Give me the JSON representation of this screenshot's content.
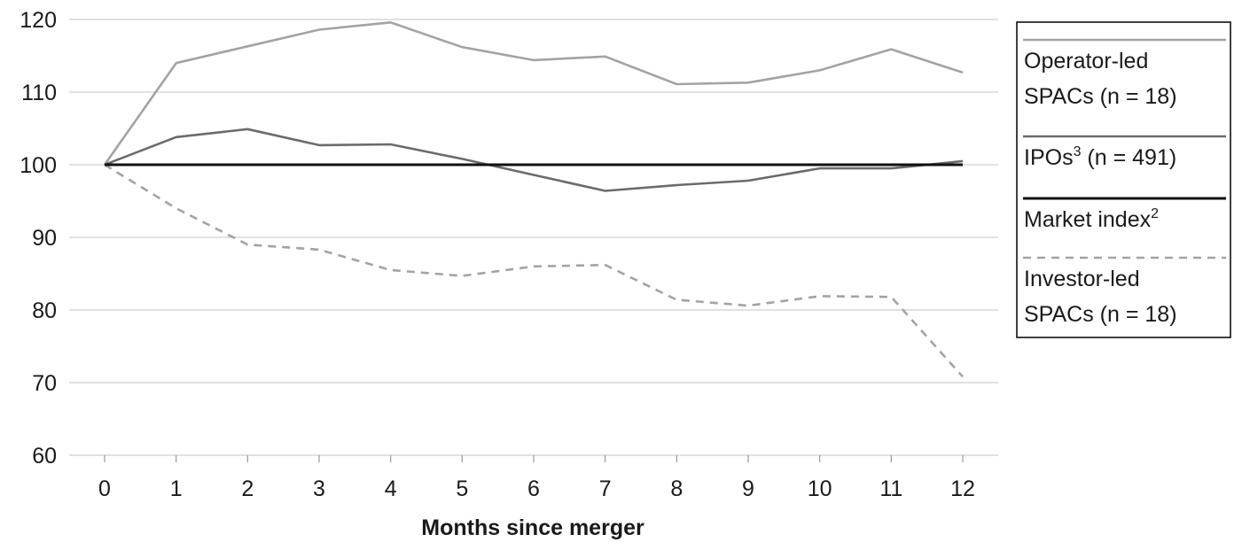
{
  "chart_data": {
    "type": "line",
    "title": "",
    "xlabel": "Months since merger",
    "ylabel": "",
    "x": [
      0,
      1,
      2,
      3,
      4,
      5,
      6,
      7,
      8,
      9,
      10,
      11,
      12
    ],
    "x_tick_labels": [
      "0",
      "1",
      "2",
      "3",
      "4",
      "5",
      "6",
      "7",
      "8",
      "9",
      "10",
      "11",
      "12"
    ],
    "xlim": [
      0,
      12
    ],
    "ylim": [
      60,
      120
    ],
    "y_ticks": [
      60,
      70,
      80,
      90,
      100,
      110,
      120
    ],
    "y_tick_labels": [
      "60",
      "70",
      "80",
      "90",
      "100",
      "110",
      "120"
    ],
    "grid": "horizontal",
    "legend_position": "right",
    "series": [
      {
        "key": "operator",
        "name": "Operator-led SPACs (n = 18)",
        "legend_lines": [
          [
            "Operator-led",
            ""
          ],
          [
            "SPACs (n = 18)",
            ""
          ]
        ],
        "color": "#a3a3a3",
        "style": "solid",
        "values": [
          100,
          114,
          116.3,
          118.6,
          119.6,
          116.2,
          114.4,
          114.9,
          111.1,
          111.3,
          113,
          115.9,
          112.7
        ]
      },
      {
        "key": "ipos",
        "name": "IPOs3 (n = 491)",
        "legend_lines": [
          [
            "IPOs",
            "3",
            " (n = 491)"
          ]
        ],
        "color": "#6b6b6b",
        "style": "solid",
        "values": [
          100,
          103.8,
          104.9,
          102.7,
          102.8,
          100.8,
          98.6,
          96.4,
          97.2,
          97.8,
          99.5,
          99.5,
          100.5
        ]
      },
      {
        "key": "market",
        "name": "Market index2",
        "legend_lines": [
          [
            "Market index",
            "2",
            ""
          ]
        ],
        "color": "#111111",
        "style": "solid",
        "values": [
          100,
          100,
          100,
          100,
          100,
          100,
          100,
          100,
          100,
          100,
          100,
          100,
          100
        ]
      },
      {
        "key": "investor",
        "name": "Investor-led SPACs (n = 18)",
        "legend_lines": [
          [
            "Investor-led",
            ""
          ],
          [
            "SPACs (n = 18)",
            ""
          ]
        ],
        "color": "#a3a3a3",
        "style": "dashed",
        "values": [
          100,
          94,
          89,
          88.3,
          85.5,
          84.7,
          86,
          86.2,
          81.4,
          80.6,
          81.9,
          81.8,
          70.8
        ]
      }
    ]
  }
}
